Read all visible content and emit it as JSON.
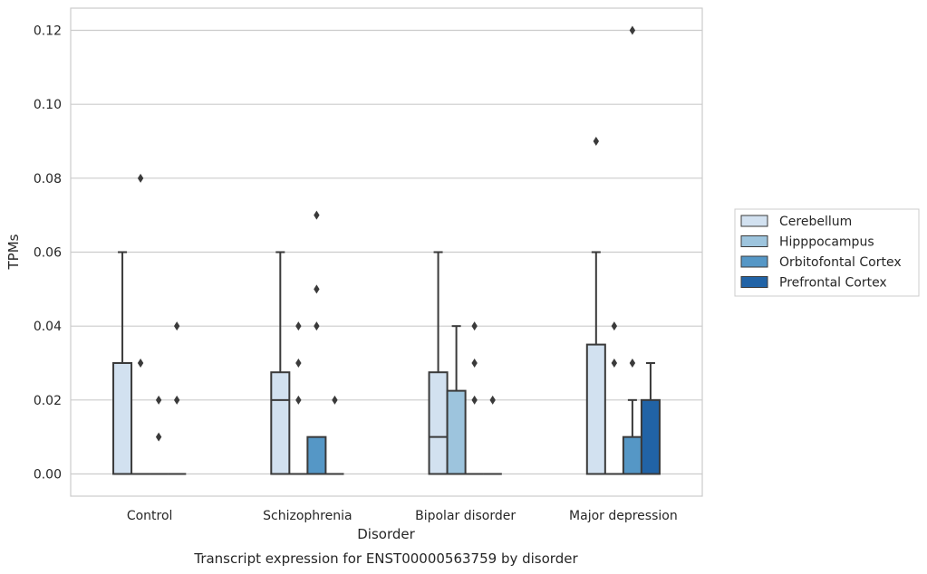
{
  "chart_data": {
    "type": "boxplot",
    "caption": "Transcript expression for ENST00000563759 by disorder",
    "xlabel": "Disorder",
    "ylabel": "TPMs",
    "ylim": [
      -0.006,
      0.126
    ],
    "yticks": [
      "0.00",
      "0.02",
      "0.04",
      "0.06",
      "0.08",
      "0.10",
      "0.12"
    ],
    "grid": "horizontal",
    "legend_position": "right",
    "categories": [
      "Control",
      "Schizophrenia",
      "Bipolar disorder",
      "Major depression"
    ],
    "series": [
      {
        "name": "Cerebellum",
        "color": "#d2e1f0",
        "boxes": [
          {
            "q1": 0,
            "median": 0,
            "q3": 0.03,
            "whisker_low": 0,
            "whisker_high": 0.06,
            "outliers": []
          },
          {
            "q1": 0,
            "median": 0.02,
            "q3": 0.0275,
            "whisker_low": 0,
            "whisker_high": 0.06,
            "outliers": []
          },
          {
            "q1": 0,
            "median": 0.01,
            "q3": 0.0275,
            "whisker_low": 0,
            "whisker_high": 0.06,
            "outliers": []
          },
          {
            "q1": 0,
            "median": 0,
            "q3": 0.035,
            "whisker_low": 0,
            "whisker_high": 0.06,
            "outliers": [
              0.09
            ]
          }
        ]
      },
      {
        "name": "Hipppocampus",
        "color": "#9dc4dd",
        "boxes": [
          {
            "q1": 0,
            "median": 0,
            "q3": 0,
            "whisker_low": 0,
            "whisker_high": 0,
            "outliers": [
              0.03,
              0.08
            ]
          },
          {
            "q1": 0,
            "median": 0,
            "q3": 0,
            "whisker_low": 0,
            "whisker_high": 0,
            "outliers": [
              0.02,
              0.03,
              0.04
            ]
          },
          {
            "q1": 0,
            "median": 0,
            "q3": 0.0225,
            "whisker_low": 0,
            "whisker_high": 0.04,
            "outliers": []
          },
          {
            "q1": 0,
            "median": 0,
            "q3": 0,
            "whisker_low": 0,
            "whisker_high": 0,
            "outliers": [
              0.03,
              0.04
            ]
          }
        ]
      },
      {
        "name": "Orbitofontal Cortex",
        "color": "#5597c6",
        "boxes": [
          {
            "q1": 0,
            "median": 0,
            "q3": 0,
            "whisker_low": 0,
            "whisker_high": 0,
            "outliers": [
              0.01,
              0.02
            ]
          },
          {
            "q1": 0,
            "median": 0,
            "q3": 0.01,
            "whisker_low": 0,
            "whisker_high": 0.01,
            "outliers": [
              0.04,
              0.05,
              0.07
            ]
          },
          {
            "q1": 0,
            "median": 0,
            "q3": 0,
            "whisker_low": 0,
            "whisker_high": 0,
            "outliers": [
              0.02,
              0.03,
              0.04
            ]
          },
          {
            "q1": 0,
            "median": 0,
            "q3": 0.01,
            "whisker_low": 0,
            "whisker_high": 0.02,
            "outliers": [
              0.03,
              0.12
            ]
          }
        ]
      },
      {
        "name": "Prefrontal Cortex",
        "color": "#2163a6",
        "boxes": [
          {
            "q1": 0,
            "median": 0,
            "q3": 0,
            "whisker_low": 0,
            "whisker_high": 0,
            "outliers": [
              0.02,
              0.04
            ]
          },
          {
            "q1": 0,
            "median": 0,
            "q3": 0,
            "whisker_low": 0,
            "whisker_high": 0,
            "outliers": [
              0.02
            ]
          },
          {
            "q1": 0,
            "median": 0,
            "q3": 0,
            "whisker_low": 0,
            "whisker_high": 0,
            "outliers": [
              0.02
            ]
          },
          {
            "q1": 0,
            "median": 0,
            "q3": 0.02,
            "whisker_low": 0,
            "whisker_high": 0.03,
            "outliers": []
          }
        ]
      }
    ]
  }
}
